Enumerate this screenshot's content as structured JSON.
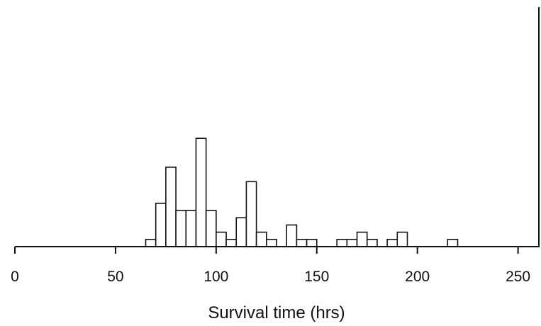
{
  "chart_data": {
    "type": "bar",
    "title": "",
    "xlabel": "Survival time (hrs)",
    "ylabel": "",
    "xlim": [
      0,
      260
    ],
    "ylim": [
      0,
      16
    ],
    "bin_width": 5,
    "x_ticks": [
      0,
      50,
      100,
      150,
      200,
      250
    ],
    "x_tick_labels": [
      "0",
      "50",
      "100",
      "150",
      "200",
      "250"
    ],
    "bins": [
      {
        "start": 65,
        "end": 70,
        "count": 0.5
      },
      {
        "start": 70,
        "end": 75,
        "count": 3
      },
      {
        "start": 75,
        "end": 80,
        "count": 5.5
      },
      {
        "start": 80,
        "end": 85,
        "count": 2.5
      },
      {
        "start": 85,
        "end": 90,
        "count": 2.5
      },
      {
        "start": 90,
        "end": 95,
        "count": 7.5
      },
      {
        "start": 95,
        "end": 100,
        "count": 2.5
      },
      {
        "start": 100,
        "end": 105,
        "count": 1
      },
      {
        "start": 105,
        "end": 110,
        "count": 0.5
      },
      {
        "start": 110,
        "end": 115,
        "count": 2
      },
      {
        "start": 115,
        "end": 120,
        "count": 4.5
      },
      {
        "start": 120,
        "end": 125,
        "count": 1
      },
      {
        "start": 125,
        "end": 130,
        "count": 0.5
      },
      {
        "start": 135,
        "end": 140,
        "count": 1.5
      },
      {
        "start": 140,
        "end": 145,
        "count": 0.5
      },
      {
        "start": 145,
        "end": 150,
        "count": 0.5
      },
      {
        "start": 160,
        "end": 165,
        "count": 0.5
      },
      {
        "start": 165,
        "end": 170,
        "count": 0.5
      },
      {
        "start": 170,
        "end": 175,
        "count": 1
      },
      {
        "start": 175,
        "end": 180,
        "count": 0.5
      },
      {
        "start": 185,
        "end": 190,
        "count": 0.5
      },
      {
        "start": 190,
        "end": 195,
        "count": 1
      },
      {
        "start": 215,
        "end": 220,
        "count": 0.5
      }
    ],
    "right_frame_line": true,
    "grid": false,
    "legend": "none"
  }
}
